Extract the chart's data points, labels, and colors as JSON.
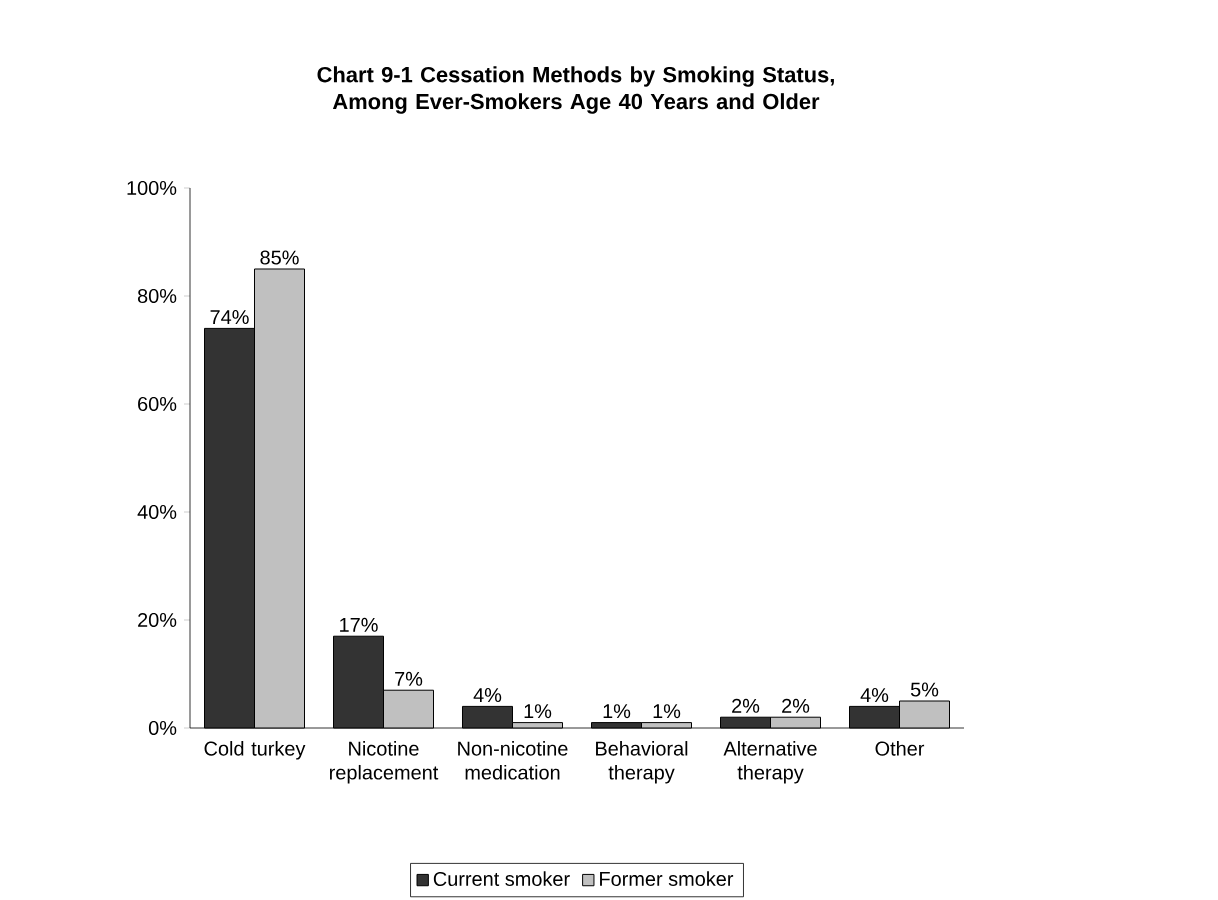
{
  "chart_data": {
    "type": "bar",
    "title": "Chart 9-1  Cessation Methods by Smoking Status, Among Ever-Smokers Age 40 Years and Older",
    "categories": [
      "Cold turkey",
      "Nicotine replacement",
      "Non-nicotine medication",
      "Behavioral therapy",
      "Alternative therapy",
      "Other"
    ],
    "series": [
      {
        "name": "Current smoker",
        "color": "#333333",
        "values": [
          74,
          17,
          4,
          1,
          2,
          4
        ],
        "value_labels": [
          "74%",
          "17%",
          "4%",
          "1%",
          "2%",
          "4%"
        ]
      },
      {
        "name": "Former smoker",
        "color": "#c0c0c0",
        "values": [
          85,
          7,
          1,
          1,
          2,
          5
        ],
        "value_labels": [
          "85%",
          "7%",
          "1%",
          "1%",
          "2%",
          "5%"
        ]
      }
    ],
    "ylim": [
      0,
      100
    ],
    "yticks": [
      {
        "value": 0,
        "label": "0%"
      },
      {
        "value": 20,
        "label": "20%"
      },
      {
        "value": 40,
        "label": "40%"
      },
      {
        "value": 60,
        "label": "60%"
      },
      {
        "value": 80,
        "label": "80%"
      },
      {
        "value": 100,
        "label": "100%"
      }
    ],
    "grid": false,
    "legend": "bottom"
  }
}
